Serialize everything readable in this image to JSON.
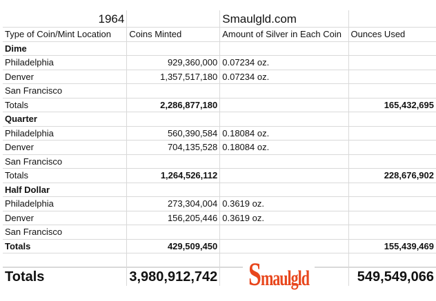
{
  "title_year": "1964",
  "title_site": "Smaulgld.com",
  "headers": [
    "Type of Coin/Mint Location",
    "Coins Minted",
    "Amount of Silver in Each Coin",
    "Ounces Used"
  ],
  "rows": [
    {
      "label": "Dime",
      "bold": true,
      "minted": "",
      "silver": "",
      "ounces": ""
    },
    {
      "label": "Philadelphia",
      "minted": "929,360,000",
      "silver": "0.07234 oz.",
      "ounces": ""
    },
    {
      "label": "Denver",
      "minted": "1,357,517,180",
      "silver": "0.07234 oz.",
      "ounces": ""
    },
    {
      "label": "San Francisco",
      "minted": "",
      "silver": "",
      "ounces": ""
    },
    {
      "label": "Totals",
      "total": true,
      "minted": "2,286,877,180",
      "silver": "",
      "ounces": "165,432,695"
    },
    {
      "label": "Quarter",
      "bold": true,
      "minted": "",
      "silver": "",
      "ounces": ""
    },
    {
      "label": "Philadelphia",
      "minted": "560,390,584",
      "silver": "0.18084 oz.",
      "ounces": ""
    },
    {
      "label": "Denver",
      "minted": "704,135,528",
      "silver": "0.18084 oz.",
      "ounces": ""
    },
    {
      "label": "San Francisco",
      "minted": "",
      "silver": "",
      "ounces": ""
    },
    {
      "label": "Totals",
      "total": true,
      "minted": "1,264,526,112",
      "silver": "",
      "ounces": "228,676,902"
    },
    {
      "label": "Half Dollar",
      "bold": true,
      "minted": "",
      "silver": "",
      "ounces": ""
    },
    {
      "label": "Philadelphia",
      "minted": "273,304,004",
      "silver": "0.3619 oz.",
      "ounces": ""
    },
    {
      "label": "Denver",
      "minted": "156,205,446",
      "silver": "0.3619 oz.",
      "ounces": ""
    },
    {
      "label": "San Francisco",
      "minted": "",
      "silver": "",
      "ounces": ""
    },
    {
      "label": "Totals",
      "bold": true,
      "total": true,
      "minted": "429,509,450",
      "silver": "",
      "ounces": "155,439,469"
    }
  ],
  "grand_total": {
    "label": "Totals",
    "minted": "3,980,912,742",
    "ounces": "549,549,066"
  },
  "logo": {
    "text": "Smaulgld",
    "color": "#e8461c"
  }
}
